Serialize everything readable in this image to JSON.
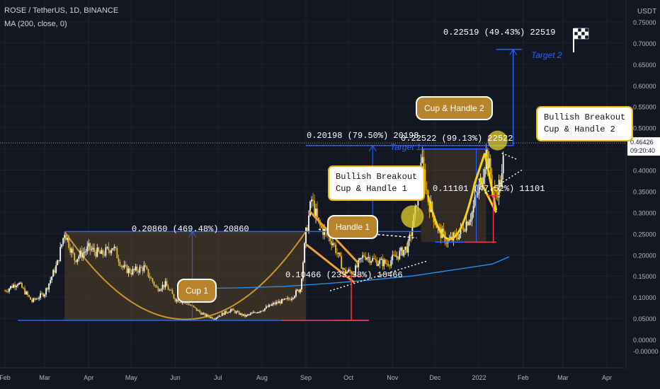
{
  "header": {
    "symbol_line": "ROSE / TetherUS, 1D, BINANCE",
    "indicator_line": "MA (200, close, 0)"
  },
  "price_scale": {
    "currency": "USDT",
    "current_price": "0.46426",
    "countdown": "09:20:40"
  },
  "colors": {
    "background": "#131722",
    "candle_up": "#ffffff",
    "candle_down": "#f0b90b",
    "cup_fill": "#7a5a2a",
    "pattern_blue": "#2962ff",
    "ma_line": "#2196f3",
    "stop_red": "#f23645",
    "handle_orange": "#f0a030",
    "callout_border": "#f0b90b"
  },
  "measure_labels": {
    "cup1": "0.20860 (469.48%) 20860",
    "handle1": "0.10466 (233.38%) 10466",
    "target1": "0.20198 (79.50%) 20198",
    "cup2": "0.22522 (99.13%) 22522",
    "handle2": "0.11101 (47.52%) 11101",
    "target2": "0.22519 (49.43%) 22519"
  },
  "target_labels": {
    "t1": "Target 1",
    "t2": "Target 2"
  },
  "bubbles": {
    "cup1": "Cup 1",
    "handle1": "Handle 1",
    "cup_handle2": "Cup & Handle 2"
  },
  "callouts": {
    "breakout1": "Bullish Breakout\nCup & Handle 1",
    "breakout2": "Bullish Breakout\nCup & Handle 2"
  },
  "chart_data": {
    "type": "candlestick",
    "title": "ROSE / TetherUS, 1D, BINANCE",
    "ylim": [
      -0.02,
      0.77
    ],
    "y_ticks": [
      "0.75000",
      "0.70000",
      "0.65000",
      "0.60000",
      "0.55000",
      "0.50000",
      "0.45000",
      "0.40000",
      "0.35000",
      "0.30000",
      "0.25000",
      "0.20000",
      "0.15000",
      "0.10000",
      "0.05000",
      "0.00000",
      "-0.00000"
    ],
    "x_ticks": [
      "Feb",
      "Mar",
      "Apr",
      "May",
      "Jun",
      "Jul",
      "Aug",
      "Sep",
      "Oct",
      "Nov",
      "Dec",
      "2022",
      "Feb",
      "Mar",
      "Apr"
    ],
    "x_tick_dates": [
      "2021-02-01",
      "2021-03-01",
      "2021-04-01",
      "2021-05-01",
      "2021-06-01",
      "2021-07-01",
      "2021-08-01",
      "2021-09-01",
      "2021-10-01",
      "2021-11-01",
      "2021-12-01",
      "2022-01-01",
      "2022-02-01",
      "2022-03-01",
      "2022-04-01"
    ],
    "series": [
      {
        "name": "ROSE / TetherUS",
        "points": [
          [
            "2021-02-01",
            0.115
          ],
          [
            "2021-02-10",
            0.135
          ],
          [
            "2021-02-20",
            0.09
          ],
          [
            "2021-03-01",
            0.11
          ],
          [
            "2021-03-10",
            0.18
          ],
          [
            "2021-03-15",
            0.255
          ],
          [
            "2021-03-22",
            0.19
          ],
          [
            "2021-04-01",
            0.215
          ],
          [
            "2021-04-10",
            0.2
          ],
          [
            "2021-04-18",
            0.22
          ],
          [
            "2021-04-25",
            0.17
          ],
          [
            "2021-05-01",
            0.16
          ],
          [
            "2021-05-10",
            0.17
          ],
          [
            "2021-05-19",
            0.12
          ],
          [
            "2021-05-25",
            0.13
          ],
          [
            "2021-06-01",
            0.095
          ],
          [
            "2021-06-10",
            0.085
          ],
          [
            "2021-06-20",
            0.06
          ],
          [
            "2021-06-28",
            0.05
          ],
          [
            "2021-07-10",
            0.07
          ],
          [
            "2021-07-20",
            0.055
          ],
          [
            "2021-08-01",
            0.07
          ],
          [
            "2021-08-10",
            0.085
          ],
          [
            "2021-08-20",
            0.095
          ],
          [
            "2021-08-28",
            0.12
          ],
          [
            "2021-09-01",
            0.25
          ],
          [
            "2021-09-05",
            0.33
          ],
          [
            "2021-09-10",
            0.27
          ],
          [
            "2021-09-20",
            0.23
          ],
          [
            "2021-09-28",
            0.16
          ],
          [
            "2021-10-05",
            0.16
          ],
          [
            "2021-10-12",
            0.2
          ],
          [
            "2021-10-20",
            0.185
          ],
          [
            "2021-10-28",
            0.18
          ],
          [
            "2021-11-05",
            0.2
          ],
          [
            "2021-11-12",
            0.22
          ],
          [
            "2021-11-17",
            0.3
          ],
          [
            "2021-11-21",
            0.43
          ],
          [
            "2021-11-26",
            0.33
          ],
          [
            "2021-12-03",
            0.26
          ],
          [
            "2021-12-10",
            0.23
          ],
          [
            "2021-12-18",
            0.25
          ],
          [
            "2021-12-27",
            0.3
          ],
          [
            "2022-01-02",
            0.37
          ],
          [
            "2022-01-06",
            0.44
          ],
          [
            "2022-01-12",
            0.34
          ],
          [
            "2022-01-17",
            0.38
          ],
          [
            "2022-01-19",
            0.46
          ]
        ]
      },
      {
        "name": "MA (200, close, 0)",
        "points": [
          [
            "2021-06-05",
            0.12
          ],
          [
            "2021-07-15",
            0.122
          ],
          [
            "2021-08-15",
            0.125
          ],
          [
            "2021-09-15",
            0.132
          ],
          [
            "2021-10-15",
            0.14
          ],
          [
            "2021-11-15",
            0.15
          ],
          [
            "2021-12-15",
            0.165
          ],
          [
            "2022-01-10",
            0.178
          ],
          [
            "2022-01-22",
            0.195
          ]
        ]
      }
    ]
  }
}
